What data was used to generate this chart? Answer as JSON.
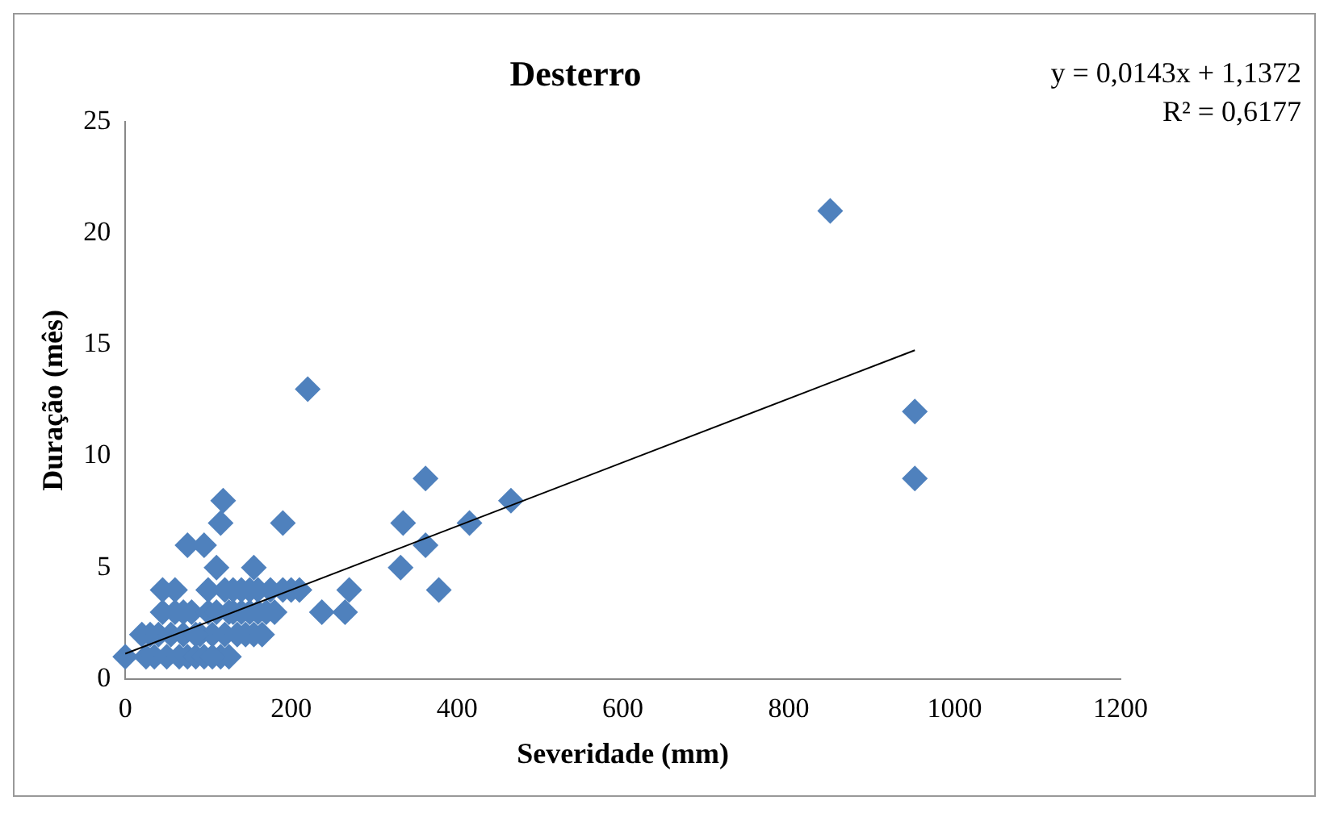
{
  "chart_data": {
    "type": "scatter",
    "title": "Desterro",
    "xlabel": "Severidade (mm)",
    "ylabel": "Duração (mês)",
    "annotations": [
      "y = 0,0143x + 1,1372",
      "R² = 0,6177"
    ],
    "xlim": [
      0,
      1200
    ],
    "xticks": [
      0,
      200,
      400,
      600,
      800,
      1000,
      1200
    ],
    "ylim": [
      0,
      25
    ],
    "yticks": [
      0,
      5,
      10,
      15,
      20,
      25
    ],
    "grid": false,
    "legend": false,
    "marker": "diamond",
    "series": [
      {
        "type": "scatter",
        "color": "#4f81bd",
        "x": [
          0,
          20,
          25,
          30,
          35,
          40,
          45,
          45,
          50,
          55,
          60,
          60,
          65,
          70,
          75,
          80,
          85,
          90,
          95,
          100,
          100,
          105,
          110,
          115,
          120,
          120,
          125,
          130,
          135,
          140,
          140,
          145,
          150,
          150,
          155,
          160,
          160,
          165,
          170,
          175,
          180,
          190,
          200,
          210,
          125,
          85,
          70,
          130,
          105,
          850,
          952,
          952,
          220,
          465,
          415,
          362,
          335,
          362,
          378,
          332,
          270,
          265,
          237,
          190,
          118,
          115,
          95,
          75,
          110,
          155
        ],
        "values": [
          1,
          2,
          1,
          2,
          1,
          2,
          3,
          4,
          1,
          2,
          3,
          4,
          1,
          2,
          1,
          3,
          1,
          2,
          1,
          3,
          4,
          2,
          3,
          1,
          2,
          4,
          1,
          3,
          2,
          4,
          3,
          2,
          3,
          4,
          2,
          4,
          3,
          2,
          3,
          4,
          3,
          4,
          4,
          4,
          3,
          2,
          3,
          4,
          1,
          21,
          12,
          9,
          13,
          8,
          7,
          9,
          7,
          6,
          4,
          5,
          4,
          3,
          3,
          7,
          8,
          7,
          6,
          6,
          5,
          5
        ]
      },
      {
        "type": "line",
        "color": "#000000",
        "marker": "none",
        "x": [
          0,
          952
        ],
        "values": [
          1.14,
          14.75
        ]
      }
    ]
  }
}
